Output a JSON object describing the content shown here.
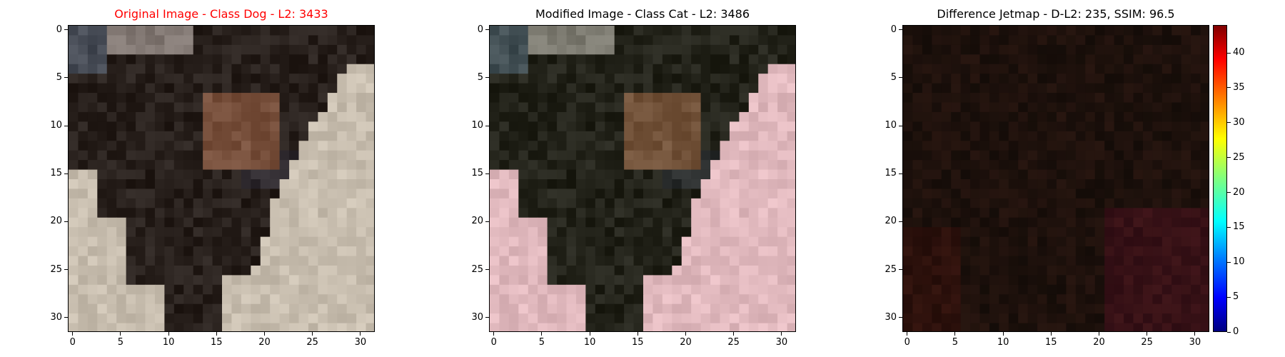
{
  "figure": {
    "panels": [
      {
        "title": "Original Image - Class Dog - L2: 3433",
        "title_color": "#ff0000",
        "kind": "original"
      },
      {
        "title": "Modified Image - Class Cat - L2: 3486",
        "title_color": "#000000",
        "kind": "modified"
      },
      {
        "title": "Difference Jetmap - D-L2: 235, SSIM: 96.5",
        "title_color": "#000000",
        "kind": "difference"
      }
    ]
  },
  "chart_data": [
    {
      "type": "heatmap",
      "title": "Original Image - Class Dog - L2: 3433",
      "image_size": [
        32,
        32
      ],
      "xlim": [
        -0.5,
        31.5
      ],
      "ylim": [
        31.5,
        -0.5
      ],
      "x_ticks": [
        0,
        5,
        10,
        15,
        20,
        25,
        30
      ],
      "y_ticks": [
        0,
        5,
        10,
        15,
        20,
        25,
        30
      ]
    },
    {
      "type": "heatmap",
      "title": "Modified Image - Class Cat - L2: 3486",
      "image_size": [
        32,
        32
      ],
      "xlim": [
        -0.5,
        31.5
      ],
      "ylim": [
        31.5,
        -0.5
      ],
      "x_ticks": [
        0,
        5,
        10,
        15,
        20,
        25,
        30
      ],
      "y_ticks": [
        0,
        5,
        10,
        15,
        20,
        25,
        30
      ]
    },
    {
      "type": "heatmap",
      "title": "Difference Jetmap - D-L2: 235, SSIM: 96.5",
      "image_size": [
        32,
        32
      ],
      "xlim": [
        -0.5,
        31.5
      ],
      "ylim": [
        31.5,
        -0.5
      ],
      "x_ticks": [
        0,
        5,
        10,
        15,
        20,
        25,
        30
      ],
      "y_ticks": [
        0,
        5,
        10,
        15,
        20,
        25,
        30
      ],
      "colorbar": {
        "colormap": "jet",
        "range": [
          0,
          44
        ],
        "ticks": [
          0,
          5,
          10,
          15,
          20,
          25,
          30,
          35,
          40
        ]
      }
    }
  ]
}
